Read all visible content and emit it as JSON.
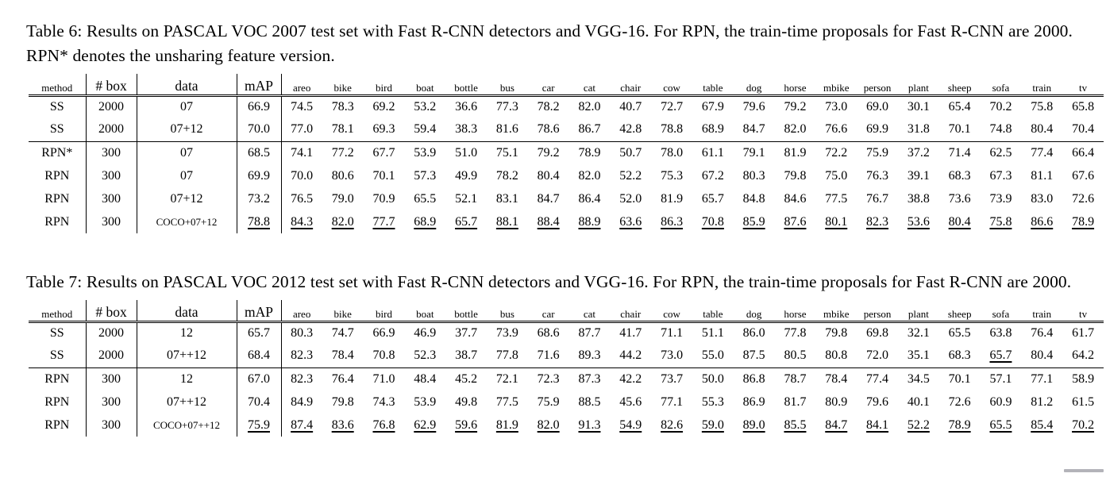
{
  "page": {
    "background": "#ffffff",
    "text_color": "#000000"
  },
  "scrollbar": {
    "visible": true,
    "color": "#9a9aa2"
  },
  "tables": [
    {
      "caption": "Table 6: Results on PASCAL VOC 2007 test set with Fast R-CNN detectors and VGG-16. For RPN, the train-time proposals for Fast R-CNN are 2000. RPN* denotes the unsharing feature version.",
      "columns": [
        "method",
        "# box",
        "data",
        "mAP"
      ],
      "classes": [
        "areo",
        "bike",
        "bird",
        "boat",
        "bottle",
        "bus",
        "car",
        "cat",
        "chair",
        "cow",
        "table",
        "dog",
        "horse",
        "mbike",
        "person",
        "plant",
        "sheep",
        "sofa",
        "train",
        "tv"
      ],
      "rows": [
        {
          "method": "SS",
          "box": "2000",
          "data": "07",
          "map": "66.9",
          "map_style": "",
          "values": [
            "74.5",
            "78.3",
            "69.2",
            "53.2",
            "36.6",
            "77.3",
            "78.2",
            "82.0",
            "40.7",
            "72.7",
            "67.9",
            "79.6",
            "79.2",
            "73.0",
            "69.0",
            "30.1",
            "65.4",
            "70.2",
            "75.8",
            "65.8"
          ],
          "row_style": "",
          "emphasis": {},
          "group_end": false
        },
        {
          "method": "SS",
          "box": "2000",
          "data": "07+12",
          "map": "70.0",
          "map_style": "",
          "values": [
            "77.0",
            "78.1",
            "69.3",
            "59.4",
            "38.3",
            "81.6",
            "78.6",
            "86.7",
            "42.8",
            "78.8",
            "68.9",
            "84.7",
            "82.0",
            "76.6",
            "69.9",
            "31.8",
            "70.1",
            "74.8",
            "80.4",
            "70.4"
          ],
          "row_style": "",
          "emphasis": {},
          "group_end": true
        },
        {
          "method": "RPN*",
          "box": "300",
          "data": "07",
          "map": "68.5",
          "map_style": "",
          "values": [
            "74.1",
            "77.2",
            "67.7",
            "53.9",
            "51.0",
            "75.1",
            "79.2",
            "78.9",
            "50.7",
            "78.0",
            "61.1",
            "79.1",
            "81.9",
            "72.2",
            "75.9",
            "37.2",
            "71.4",
            "62.5",
            "77.4",
            "66.4"
          ],
          "row_style": "",
          "emphasis": {},
          "group_end": false
        },
        {
          "method": "RPN",
          "box": "300",
          "data": "07",
          "map": "69.9",
          "map_style": "",
          "values": [
            "70.0",
            "80.6",
            "70.1",
            "57.3",
            "49.9",
            "78.2",
            "80.4",
            "82.0",
            "52.2",
            "75.3",
            "67.2",
            "80.3",
            "79.8",
            "75.0",
            "76.3",
            "39.1",
            "68.3",
            "67.3",
            "81.1",
            "67.6"
          ],
          "row_style": "",
          "emphasis": {},
          "group_end": false
        },
        {
          "method": "RPN",
          "box": "300",
          "data": "07+12",
          "map": "73.2",
          "map_style": "",
          "values": [
            "76.5",
            "79.0",
            "70.9",
            "65.5",
            "52.1",
            "83.1",
            "84.7",
            "86.4",
            "52.0",
            "81.9",
            "65.7",
            "84.8",
            "84.6",
            "77.5",
            "76.7",
            "38.8",
            "73.6",
            "73.9",
            "83.0",
            "72.6"
          ],
          "row_style": "",
          "emphasis": {},
          "group_end": false
        },
        {
          "method": "RPN",
          "box": "300",
          "data": "COCO+07+12",
          "map": "78.8",
          "map_style": "bu",
          "values": [
            "84.3",
            "82.0",
            "77.7",
            "68.9",
            "65.7",
            "88.1",
            "88.4",
            "88.9",
            "63.6",
            "86.3",
            "70.8",
            "85.9",
            "87.6",
            "80.1",
            "82.3",
            "53.6",
            "80.4",
            "75.8",
            "86.6",
            "78.9"
          ],
          "row_style": "bu",
          "emphasis": {},
          "group_end": false
        }
      ]
    },
    {
      "caption": "Table 7: Results on PASCAL VOC 2012 test set with Fast R-CNN detectors and VGG-16. For RPN, the train-time proposals for Fast R-CNN are 2000.",
      "columns": [
        "method",
        "# box",
        "data",
        "mAP"
      ],
      "classes": [
        "areo",
        "bike",
        "bird",
        "boat",
        "bottle",
        "bus",
        "car",
        "cat",
        "chair",
        "cow",
        "table",
        "dog",
        "horse",
        "mbike",
        "person",
        "plant",
        "sheep",
        "sofa",
        "train",
        "tv"
      ],
      "rows": [
        {
          "method": "SS",
          "box": "2000",
          "data": "12",
          "map": "65.7",
          "map_style": "",
          "values": [
            "80.3",
            "74.7",
            "66.9",
            "46.9",
            "37.7",
            "73.9",
            "68.6",
            "87.7",
            "41.7",
            "71.1",
            "51.1",
            "86.0",
            "77.8",
            "79.8",
            "69.8",
            "32.1",
            "65.5",
            "63.8",
            "76.4",
            "61.7"
          ],
          "row_style": "",
          "emphasis": {},
          "group_end": false
        },
        {
          "method": "SS",
          "box": "2000",
          "data": "07++12",
          "map": "68.4",
          "map_style": "",
          "values": [
            "82.3",
            "78.4",
            "70.8",
            "52.3",
            "38.7",
            "77.8",
            "71.6",
            "89.3",
            "44.2",
            "73.0",
            "55.0",
            "87.5",
            "80.5",
            "80.8",
            "72.0",
            "35.1",
            "68.3",
            "65.7",
            "80.4",
            "64.2"
          ],
          "row_style": "",
          "emphasis": {
            "11": "b",
            "17": "bu"
          },
          "group_end": true
        },
        {
          "method": "RPN",
          "box": "300",
          "data": "12",
          "map": "67.0",
          "map_style": "",
          "values": [
            "82.3",
            "76.4",
            "71.0",
            "48.4",
            "45.2",
            "72.1",
            "72.3",
            "87.3",
            "42.2",
            "73.7",
            "50.0",
            "86.8",
            "78.7",
            "78.4",
            "77.4",
            "34.5",
            "70.1",
            "57.1",
            "77.1",
            "58.9"
          ],
          "row_style": "",
          "emphasis": {},
          "group_end": false
        },
        {
          "method": "RPN",
          "box": "300",
          "data": "07++12",
          "map": "70.4",
          "map_style": "",
          "values": [
            "84.9",
            "79.8",
            "74.3",
            "53.9",
            "49.8",
            "77.5",
            "75.9",
            "88.5",
            "45.6",
            "77.1",
            "55.3",
            "86.9",
            "81.7",
            "80.9",
            "79.6",
            "40.1",
            "72.6",
            "60.9",
            "81.2",
            "61.5"
          ],
          "row_style": "",
          "emphasis": {},
          "group_end": false
        },
        {
          "method": "RPN",
          "box": "300",
          "data": "COCO+07++12",
          "map": "75.9",
          "map_style": "bu",
          "values": [
            "87.4",
            "83.6",
            "76.8",
            "62.9",
            "59.6",
            "81.9",
            "82.0",
            "91.3",
            "54.9",
            "82.6",
            "59.0",
            "89.0",
            "85.5",
            "84.7",
            "84.1",
            "52.2",
            "78.9",
            "65.5",
            "85.4",
            "70.2"
          ],
          "row_style": "bu",
          "emphasis": {},
          "group_end": false
        }
      ]
    }
  ]
}
